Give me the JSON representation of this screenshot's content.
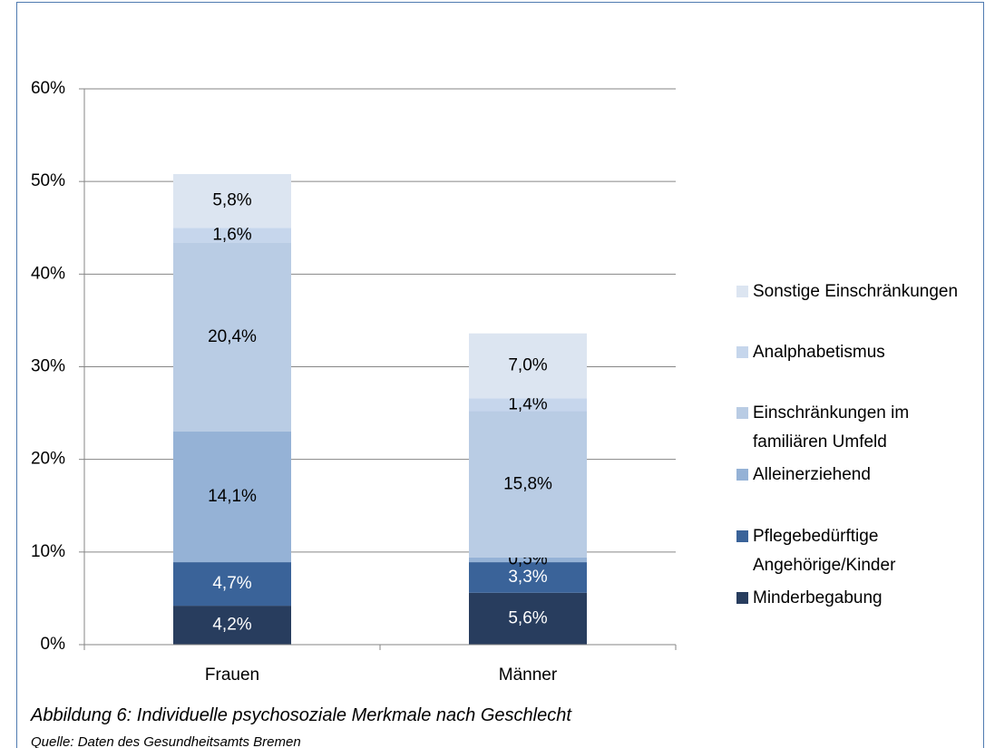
{
  "chart_data": {
    "type": "stacked-bar",
    "categories": [
      "Frauen",
      "Männer"
    ],
    "series": [
      {
        "name": "Minderbegabung",
        "color": "#283d5e",
        "values": [
          4.2,
          5.6
        ],
        "value_labels": [
          "4,2%",
          "5,6%"
        ]
      },
      {
        "name": "Pflegebedürftige Angehörige/Kinder",
        "color": "#3a6399",
        "values": [
          4.7,
          3.3
        ],
        "value_labels": [
          "4,7%",
          "3,3%"
        ]
      },
      {
        "name": "Alleinerziehend",
        "color": "#95b2d6",
        "values": [
          14.1,
          0.5
        ],
        "value_labels": [
          "14,1%",
          "0,5%"
        ]
      },
      {
        "name": "Einschränkungen im familiären Umfeld",
        "color": "#b9cce4",
        "values": [
          20.4,
          15.8
        ],
        "value_labels": [
          "20,4%",
          "15,8%"
        ]
      },
      {
        "name": "Analphabetismus",
        "color": "#c6d6ec",
        "values": [
          1.6,
          1.4
        ],
        "value_labels": [
          "1,6%",
          "1,4%"
        ]
      },
      {
        "name": "Sonstige Einschränkungen",
        "color": "#dce5f1",
        "values": [
          5.8,
          7.0
        ],
        "value_labels": [
          "5,8%",
          "7,0%"
        ]
      }
    ],
    "ylim": [
      0,
      60
    ],
    "yticks": [
      {
        "value": 0,
        "label": "0%"
      },
      {
        "value": 10,
        "label": "10%"
      },
      {
        "value": 20,
        "label": "20%"
      },
      {
        "value": 30,
        "label": "30%"
      },
      {
        "value": 40,
        "label": "40%"
      },
      {
        "value": 50,
        "label": "50%"
      },
      {
        "value": 60,
        "label": "60%"
      }
    ],
    "grid": true,
    "legend": "right",
    "caption": "Abbildung 6: Individuelle psychosoziale Merkmale nach Geschlecht",
    "source": "Quelle: Daten des Gesundheitsamts Bremen"
  }
}
